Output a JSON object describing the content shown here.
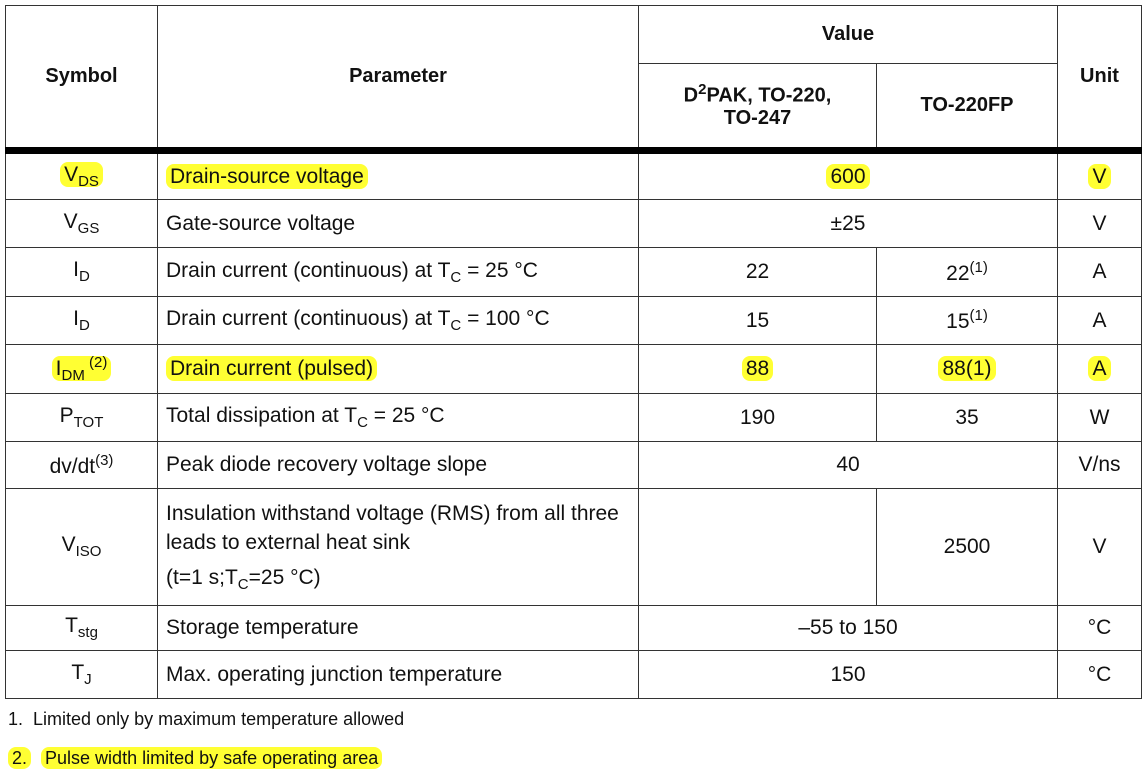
{
  "headers": {
    "symbol": "Symbol",
    "parameter": "Parameter",
    "value": "Value",
    "col1": "D",
    "col1_sup": "2",
    "col1_rest": "PAK, TO-220,",
    "col1_line2": "TO-247",
    "col2": "TO-220FP",
    "unit": "Unit"
  },
  "rows": [
    {
      "sym": "V",
      "sub": "DS",
      "sup": "",
      "param": "Drain-source voltage",
      "v1": "600",
      "v2": null,
      "unit": "V",
      "hl": true
    },
    {
      "sym": "V",
      "sub": "GS",
      "sup": "",
      "param": "Gate-source voltage",
      "v1": "±25",
      "v2": null,
      "unit": "V"
    },
    {
      "sym": "I",
      "sub": "D",
      "sup": "",
      "param": "Drain current (continuous) at T",
      "psub": "C",
      "pafter": " = 25 °C",
      "v1": "22",
      "v2": "22",
      "v2sup": "(1)",
      "unit": "A"
    },
    {
      "sym": "I",
      "sub": "D",
      "sup": "",
      "param": "Drain current (continuous) at T",
      "psub": "C",
      "pafter": " = 100 °C",
      "v1": "15",
      "v2": "15",
      "v2sup": "(1)",
      "unit": "A"
    },
    {
      "sym": "I",
      "sub": "DM",
      "sup": " (2)",
      "param": "Drain current (pulsed)",
      "v1": "88",
      "v2": "88(1)",
      "unit": "A",
      "hl": true
    },
    {
      "sym": "P",
      "sub": "TOT",
      "sup": "",
      "param": "Total dissipation at T",
      "psub": "C",
      "pafter": " = 25 °C",
      "v1": "190",
      "v2": "35",
      "unit": "W"
    },
    {
      "sym": "dv/dt",
      "sub": "",
      "sup": "(3)",
      "param": "Peak diode recovery voltage slope",
      "v1": "40",
      "v2": null,
      "unit": "V/ns"
    },
    {
      "sym": "V",
      "sub": "ISO",
      "sup": "",
      "param": "Insulation withstand voltage (RMS) from all three leads to external heat sink",
      "pline3": "(t=1 s;T",
      "psub3": "C",
      "pafter3": "=25 °C)",
      "v1": "",
      "v2": "2500",
      "unit": "V",
      "split": true
    },
    {
      "sym": "T",
      "sub": "stg",
      "sup": "",
      "param": "Storage temperature",
      "v1": "–55 to 150",
      "v2": null,
      "unit": "°C"
    },
    {
      "sym": "T",
      "sub": "J",
      "sup": "",
      "param": "Max. operating junction temperature",
      "v1": "150",
      "v2": null,
      "unit": "°C"
    }
  ],
  "footnotes": [
    {
      "num": "1.",
      "text": "Limited only by maximum temperature allowed"
    },
    {
      "num": "2.",
      "text": "Pulse width limited by safe operating area",
      "hl": true
    }
  ],
  "highlight_color": "#ffff33"
}
